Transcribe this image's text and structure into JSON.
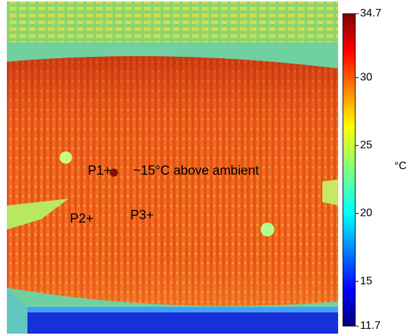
{
  "image": {
    "annotations": [
      {
        "label": "P1+"
      },
      {
        "label": "~15°C above ambient"
      },
      {
        "label": "P2+"
      },
      {
        "label": "P3+"
      }
    ]
  },
  "colorbar": {
    "min": 11.7,
    "max": 34.7,
    "ticks": [
      34.7,
      30,
      25,
      20,
      15,
      11.7
    ],
    "unit": "°C"
  }
}
